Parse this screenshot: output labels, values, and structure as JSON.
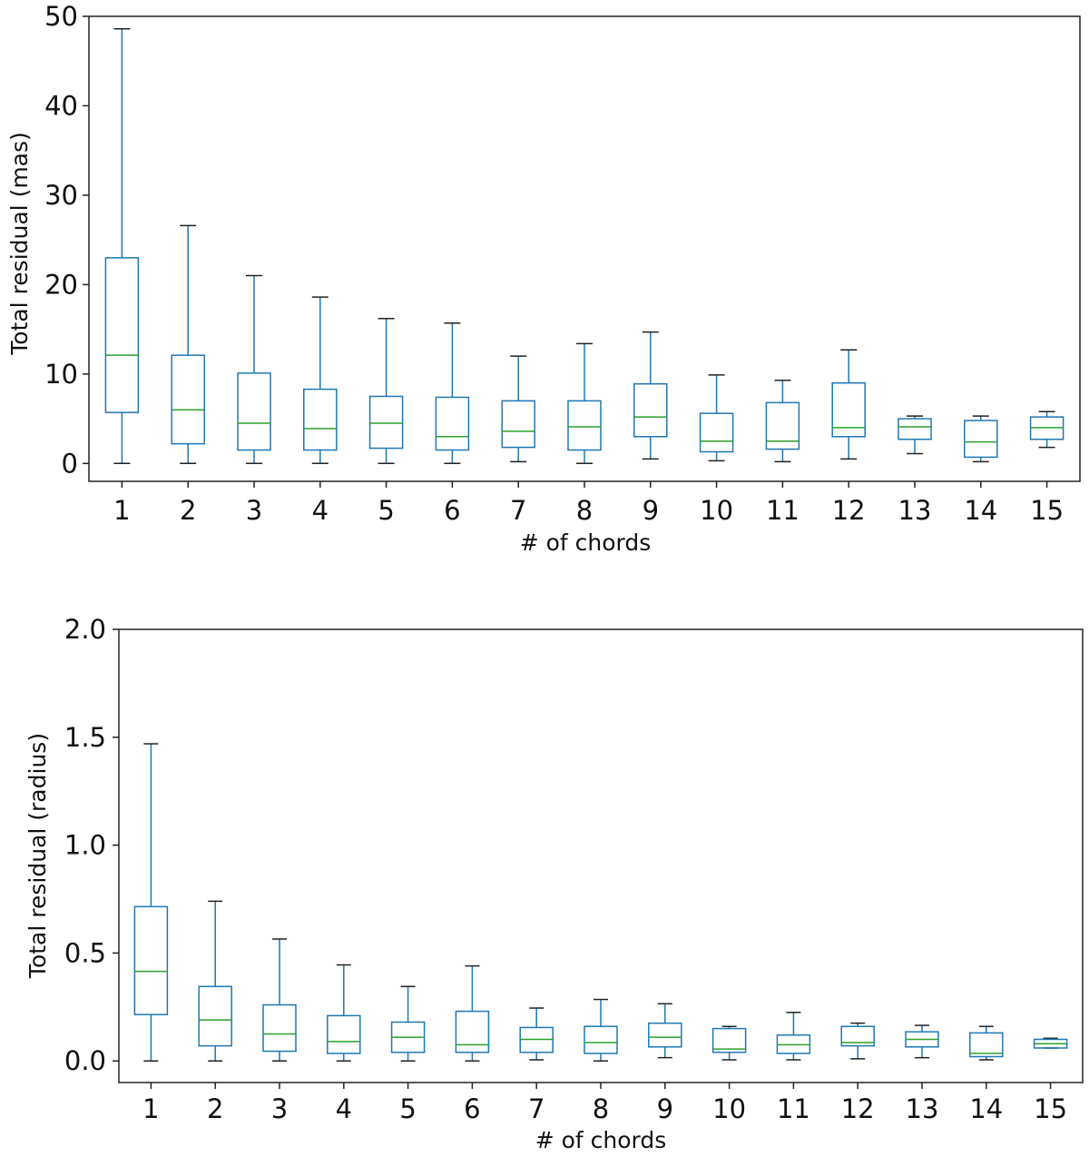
{
  "chart_data": [
    {
      "type": "box",
      "title": "",
      "xlabel": "# of chords",
      "ylabel": "Total residual (mas)",
      "ylim": [
        -2,
        50
      ],
      "yticks": [
        0,
        10,
        20,
        30,
        40,
        50
      ],
      "ytick_labels": [
        "0",
        "10",
        "20",
        "30",
        "40",
        "50"
      ],
      "categories": [
        "1",
        "2",
        "3",
        "4",
        "5",
        "6",
        "7",
        "8",
        "9",
        "10",
        "11",
        "12",
        "13",
        "14",
        "15"
      ],
      "boxes": [
        {
          "whislo": 0.0,
          "q1": 5.7,
          "med": 12.1,
          "q3": 23.0,
          "whishi": 48.6
        },
        {
          "whislo": 0.0,
          "q1": 2.2,
          "med": 6.0,
          "q3": 12.1,
          "whishi": 26.6
        },
        {
          "whislo": 0.0,
          "q1": 1.5,
          "med": 4.5,
          "q3": 10.1,
          "whishi": 21.0
        },
        {
          "whislo": 0.0,
          "q1": 1.5,
          "med": 3.9,
          "q3": 8.3,
          "whishi": 18.6
        },
        {
          "whislo": 0.0,
          "q1": 1.7,
          "med": 4.5,
          "q3": 7.5,
          "whishi": 16.2
        },
        {
          "whislo": 0.0,
          "q1": 1.5,
          "med": 3.0,
          "q3": 7.4,
          "whishi": 15.7
        },
        {
          "whislo": 0.2,
          "q1": 1.8,
          "med": 3.6,
          "q3": 7.0,
          "whishi": 12.0
        },
        {
          "whislo": 0.0,
          "q1": 1.5,
          "med": 4.1,
          "q3": 7.0,
          "whishi": 13.4
        },
        {
          "whislo": 0.5,
          "q1": 3.0,
          "med": 5.2,
          "q3": 8.9,
          "whishi": 14.7
        },
        {
          "whislo": 0.3,
          "q1": 1.3,
          "med": 2.5,
          "q3": 5.6,
          "whishi": 9.9
        },
        {
          "whislo": 0.2,
          "q1": 1.6,
          "med": 2.5,
          "q3": 6.8,
          "whishi": 9.3
        },
        {
          "whislo": 0.5,
          "q1": 3.0,
          "med": 4.0,
          "q3": 9.0,
          "whishi": 12.7
        },
        {
          "whislo": 1.1,
          "q1": 2.7,
          "med": 4.1,
          "q3": 5.0,
          "whishi": 5.3
        },
        {
          "whislo": 0.2,
          "q1": 0.7,
          "med": 2.4,
          "q3": 4.8,
          "whishi": 5.3
        },
        {
          "whislo": 1.8,
          "q1": 2.7,
          "med": 4.0,
          "q3": 5.2,
          "whishi": 5.8
        }
      ]
    },
    {
      "type": "box",
      "title": "",
      "xlabel": "# of chords",
      "ylabel": "Total residual (radius)",
      "ylim": [
        -0.1,
        2.0
      ],
      "yticks": [
        0.0,
        0.5,
        1.0,
        1.5,
        2.0
      ],
      "ytick_labels": [
        "0.0",
        "0.5",
        "1.0",
        "1.5",
        "2.0"
      ],
      "categories": [
        "1",
        "2",
        "3",
        "4",
        "5",
        "6",
        "7",
        "8",
        "9",
        "10",
        "11",
        "12",
        "13",
        "14",
        "15"
      ],
      "boxes": [
        {
          "whislo": 0.0,
          "q1": 0.215,
          "med": 0.415,
          "q3": 0.715,
          "whishi": 1.47
        },
        {
          "whislo": 0.0,
          "q1": 0.07,
          "med": 0.19,
          "q3": 0.345,
          "whishi": 0.74
        },
        {
          "whislo": 0.0,
          "q1": 0.045,
          "med": 0.125,
          "q3": 0.26,
          "whishi": 0.565
        },
        {
          "whislo": 0.0,
          "q1": 0.035,
          "med": 0.09,
          "q3": 0.21,
          "whishi": 0.445
        },
        {
          "whislo": 0.0,
          "q1": 0.04,
          "med": 0.11,
          "q3": 0.18,
          "whishi": 0.345
        },
        {
          "whislo": 0.0,
          "q1": 0.04,
          "med": 0.075,
          "q3": 0.23,
          "whishi": 0.44
        },
        {
          "whislo": 0.005,
          "q1": 0.04,
          "med": 0.1,
          "q3": 0.155,
          "whishi": 0.245
        },
        {
          "whislo": 0.0,
          "q1": 0.035,
          "med": 0.085,
          "q3": 0.16,
          "whishi": 0.285
        },
        {
          "whislo": 0.015,
          "q1": 0.065,
          "med": 0.11,
          "q3": 0.175,
          "whishi": 0.265
        },
        {
          "whislo": 0.005,
          "q1": 0.04,
          "med": 0.055,
          "q3": 0.15,
          "whishi": 0.16
        },
        {
          "whislo": 0.005,
          "q1": 0.035,
          "med": 0.075,
          "q3": 0.12,
          "whishi": 0.225
        },
        {
          "whislo": 0.01,
          "q1": 0.07,
          "med": 0.085,
          "q3": 0.16,
          "whishi": 0.175
        },
        {
          "whislo": 0.015,
          "q1": 0.065,
          "med": 0.1,
          "q3": 0.135,
          "whishi": 0.165
        },
        {
          "whislo": 0.005,
          "q1": 0.02,
          "med": 0.035,
          "q3": 0.13,
          "whishi": 0.16
        },
        {
          "whislo": 0.06,
          "q1": 0.06,
          "med": 0.08,
          "q3": 0.1,
          "whishi": 0.105
        }
      ]
    }
  ],
  "colors": {
    "box": "#1f77b4",
    "median": "#2ca02c",
    "cap": "#222222",
    "axis": "#222222"
  }
}
